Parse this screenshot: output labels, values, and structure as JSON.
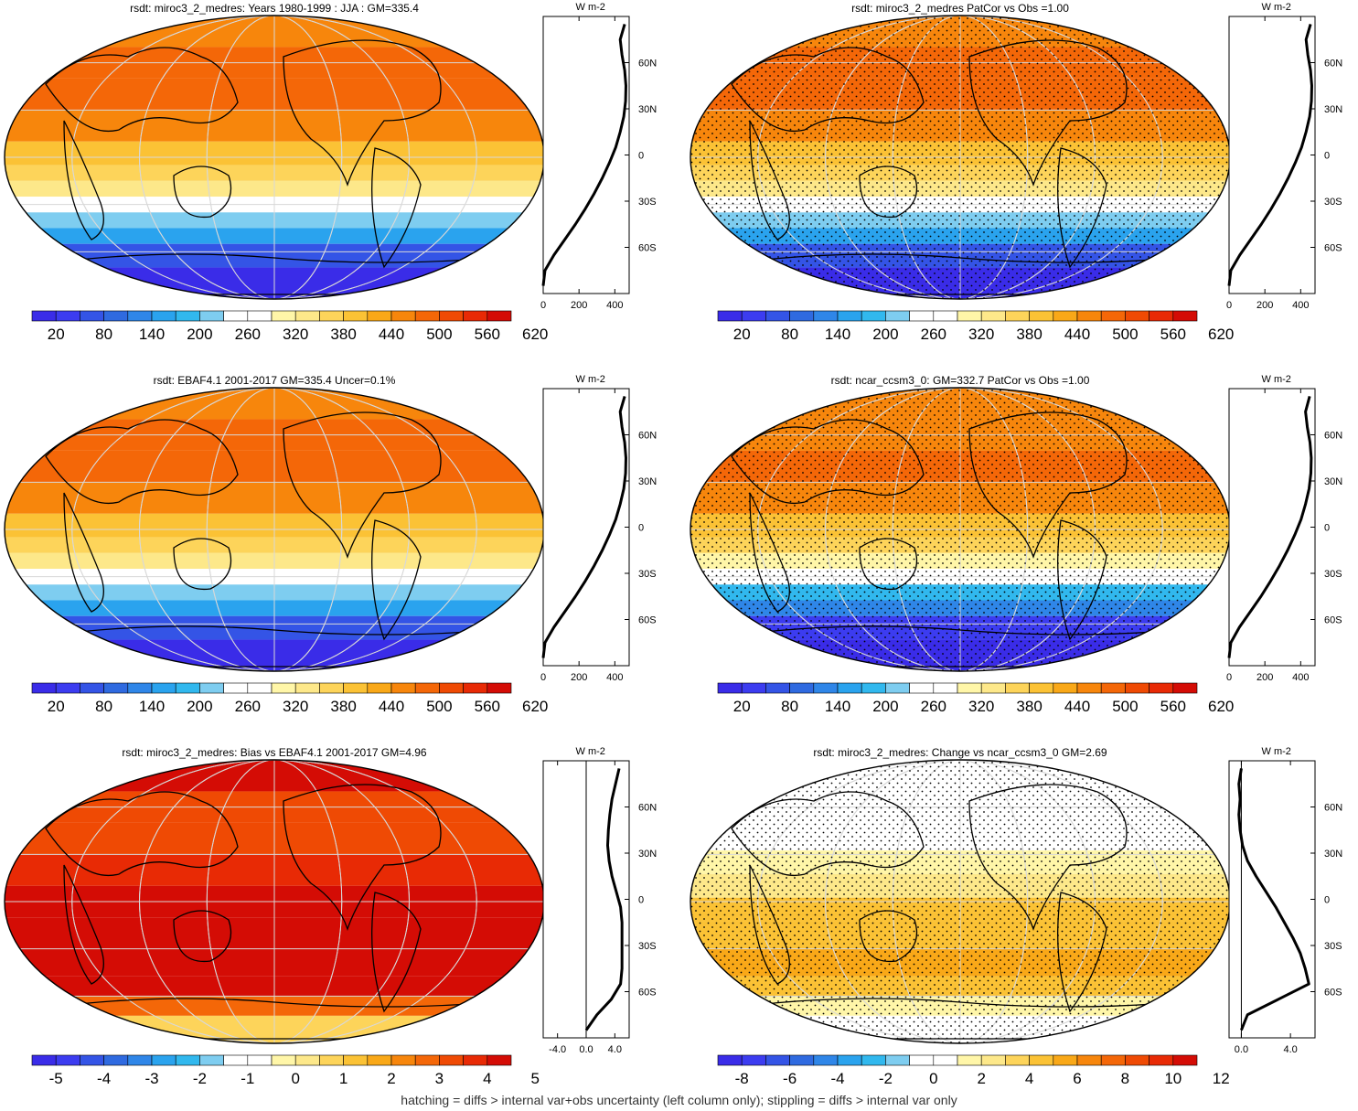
{
  "figure": {
    "footer": "hatching = diffs > internal var+obs uncertainty (left column only); stippling = diffs > internal var only",
    "units": "W m-2"
  },
  "palettes": {
    "main": [
      "#3a2ce8",
      "#3c3cf0",
      "#3454e6",
      "#2f6ae0",
      "#2f86e8",
      "#2aa3ee",
      "#31b8ee",
      "#7ecdf0",
      "#ffffff",
      "#ffffff",
      "#fff6a8",
      "#fde88a",
      "#fdd45a",
      "#fbc235",
      "#f9a818",
      "#f7860c",
      "#f46708",
      "#ef4a04",
      "#e82a05",
      "#d40c05"
    ],
    "bias": [
      "#3a2ce8",
      "#3c3cf0",
      "#3454e6",
      "#2f6ae0",
      "#2f86e8",
      "#2aa3ee",
      "#31b8ee",
      "#7ecdf0",
      "#ffffff",
      "#ffffff",
      "#fff6a8",
      "#fde88a",
      "#fdd45a",
      "#fbc235",
      "#f9a818",
      "#f7860c",
      "#f46708",
      "#ef4a04",
      "#e82a05",
      "#d40c05"
    ],
    "change": [
      "#3a2ce8",
      "#3c3cf0",
      "#3454e6",
      "#2f6ae0",
      "#2f86e8",
      "#2aa3ee",
      "#31b8ee",
      "#7ecdf0",
      "#ffffff",
      "#ffffff",
      "#fff6a8",
      "#fde88a",
      "#fdd45a",
      "#fbc235",
      "#f9a818",
      "#f7860c",
      "#f46708",
      "#ef4a04",
      "#e82a05",
      "#d40c05"
    ]
  },
  "chart_data": [
    {
      "type": "heatmap",
      "title": "rsdt: miroc3_2_medres: Years 1980-1999 : JJA : GM=335.4",
      "colorbar_labels": [
        "20",
        "80",
        "140",
        "200",
        "260",
        "320",
        "380",
        "440",
        "500",
        "560",
        "620"
      ],
      "palette": "main",
      "stipple": false,
      "map_bands_north_to_south": [
        {
          "lat": 80,
          "value": 455
        },
        {
          "lat": 60,
          "value": 470
        },
        {
          "lat": 40,
          "value": 478
        },
        {
          "lat": 20,
          "value": 455
        },
        {
          "lat": 0,
          "value": 400
        },
        {
          "lat": -10,
          "value": 370
        },
        {
          "lat": -20,
          "value": 320
        },
        {
          "lat": -30,
          "value": 250
        },
        {
          "lat": -40,
          "value": 200
        },
        {
          "lat": -50,
          "value": 140
        },
        {
          "lat": -60,
          "value": 50
        },
        {
          "lat": -80,
          "value": 5
        }
      ],
      "profile": {
        "xlabel": "W m-2",
        "xticks": [
          "0",
          "200",
          "400"
        ],
        "xlim": [
          0,
          480
        ],
        "lat": [
          -85,
          -75,
          -65,
          -55,
          -45,
          -35,
          -25,
          -15,
          -5,
          5,
          15,
          25,
          35,
          45,
          55,
          65,
          75,
          85
        ],
        "values": [
          0,
          10,
          60,
          120,
          180,
          235,
          285,
          330,
          370,
          405,
          430,
          450,
          460,
          462,
          455,
          440,
          430,
          455
        ],
        "yticks": [
          "60N",
          "30N",
          "0",
          "30S",
          "60S"
        ]
      }
    },
    {
      "type": "heatmap",
      "title": "rsdt: miroc3_2_medres PatCor vs Obs =1.00",
      "colorbar_labels": [
        "20",
        "80",
        "140",
        "200",
        "260",
        "320",
        "380",
        "440",
        "500",
        "560",
        "620"
      ],
      "palette": "main",
      "stipple": true,
      "map_bands_north_to_south": [
        {
          "lat": 80,
          "value": 455
        },
        {
          "lat": 60,
          "value": 470
        },
        {
          "lat": 40,
          "value": 478
        },
        {
          "lat": 20,
          "value": 455
        },
        {
          "lat": 0,
          "value": 400
        },
        {
          "lat": -10,
          "value": 370
        },
        {
          "lat": -20,
          "value": 320
        },
        {
          "lat": -30,
          "value": 250
        },
        {
          "lat": -40,
          "value": 200
        },
        {
          "lat": -50,
          "value": 140
        },
        {
          "lat": -60,
          "value": 50
        },
        {
          "lat": -80,
          "value": 5
        }
      ],
      "profile": {
        "xlabel": "W m-2",
        "xticks": [
          "0",
          "200",
          "400"
        ],
        "xlim": [
          0,
          480
        ],
        "lat": [
          -85,
          -75,
          -65,
          -55,
          -45,
          -35,
          -25,
          -15,
          -5,
          5,
          15,
          25,
          35,
          45,
          55,
          65,
          75,
          85
        ],
        "values": [
          0,
          10,
          60,
          120,
          180,
          235,
          285,
          330,
          370,
          405,
          430,
          450,
          460,
          462,
          455,
          440,
          430,
          455
        ],
        "yticks": [
          "60N",
          "30N",
          "0",
          "30S",
          "60S"
        ]
      }
    },
    {
      "type": "heatmap",
      "title": "rsdt: EBAF4.1 2001-2017 GM=335.4 Uncer=0.1%",
      "colorbar_labels": [
        "20",
        "80",
        "140",
        "200",
        "260",
        "320",
        "380",
        "440",
        "500",
        "560",
        "620"
      ],
      "palette": "main",
      "stipple": false,
      "map_bands_north_to_south": [
        {
          "lat": 80,
          "value": 455
        },
        {
          "lat": 60,
          "value": 470
        },
        {
          "lat": 40,
          "value": 478
        },
        {
          "lat": 20,
          "value": 455
        },
        {
          "lat": 0,
          "value": 400
        },
        {
          "lat": -10,
          "value": 370
        },
        {
          "lat": -20,
          "value": 320
        },
        {
          "lat": -30,
          "value": 250
        },
        {
          "lat": -40,
          "value": 200
        },
        {
          "lat": -50,
          "value": 140
        },
        {
          "lat": -60,
          "value": 50
        },
        {
          "lat": -80,
          "value": 5
        }
      ],
      "profile": {
        "xlabel": "W m-2",
        "xticks": [
          "0",
          "200",
          "400"
        ],
        "xlim": [
          0,
          480
        ],
        "lat": [
          -85,
          -75,
          -65,
          -55,
          -45,
          -35,
          -25,
          -15,
          -5,
          5,
          15,
          25,
          35,
          45,
          55,
          65,
          75,
          85
        ],
        "values": [
          0,
          10,
          60,
          120,
          180,
          235,
          285,
          330,
          370,
          405,
          430,
          450,
          460,
          462,
          455,
          440,
          430,
          455
        ],
        "yticks": [
          "60N",
          "30N",
          "0",
          "30S",
          "60S"
        ]
      }
    },
    {
      "type": "heatmap",
      "title": "rsdt: ncar_ccsm3_0: GM=332.7 PatCor vs Obs =1.00",
      "colorbar_labels": [
        "20",
        "80",
        "140",
        "200",
        "260",
        "320",
        "380",
        "440",
        "500",
        "560",
        "620"
      ],
      "palette": "main",
      "stipple": true,
      "map_bands_north_to_south": [
        {
          "lat": 80,
          "value": 450
        },
        {
          "lat": 60,
          "value": 465
        },
        {
          "lat": 40,
          "value": 475
        },
        {
          "lat": 20,
          "value": 452
        },
        {
          "lat": 0,
          "value": 398
        },
        {
          "lat": -10,
          "value": 368
        },
        {
          "lat": -20,
          "value": 318
        },
        {
          "lat": -30,
          "value": 248
        },
        {
          "lat": -40,
          "value": 198
        },
        {
          "lat": -50,
          "value": 138
        },
        {
          "lat": -60,
          "value": 48
        },
        {
          "lat": -80,
          "value": 5
        }
      ],
      "profile": {
        "xlabel": "W m-2",
        "xticks": [
          "0",
          "200",
          "400"
        ],
        "xlim": [
          0,
          480
        ],
        "lat": [
          -85,
          -75,
          -65,
          -55,
          -45,
          -35,
          -25,
          -15,
          -5,
          5,
          15,
          25,
          35,
          45,
          55,
          65,
          75,
          85
        ],
        "values": [
          0,
          10,
          58,
          118,
          178,
          232,
          282,
          327,
          367,
          402,
          427,
          447,
          457,
          459,
          452,
          437,
          427,
          450
        ],
        "yticks": [
          "60N",
          "30N",
          "0",
          "30S",
          "60S"
        ]
      }
    },
    {
      "type": "heatmap",
      "title": "rsdt: miroc3_2_medres: Bias vs EBAF4.1 2001-2017 GM=4.96",
      "colorbar_labels": [
        "-5",
        "-4",
        "-3",
        "-2",
        "-1",
        "0",
        "1",
        "2",
        "3",
        "4",
        "5"
      ],
      "palette": "bias",
      "stipple": false,
      "map_bands_north_to_south": [
        {
          "lat": 80,
          "value": 4.2
        },
        {
          "lat": 60,
          "value": 3.2
        },
        {
          "lat": 40,
          "value": 3.0
        },
        {
          "lat": 20,
          "value": 3.8
        },
        {
          "lat": 0,
          "value": 4.6
        },
        {
          "lat": -20,
          "value": 4.8
        },
        {
          "lat": -40,
          "value": 4.8
        },
        {
          "lat": -55,
          "value": 4.6
        },
        {
          "lat": -65,
          "value": 2.5
        },
        {
          "lat": -80,
          "value": 0.5
        }
      ],
      "profile": {
        "xlabel": "W m-2",
        "xticks": [
          "-4.0",
          "0.0",
          "4.0"
        ],
        "xlim": [
          -6,
          6
        ],
        "lat": [
          -85,
          -75,
          -65,
          -55,
          -45,
          -35,
          -25,
          -15,
          -5,
          5,
          15,
          25,
          35,
          45,
          55,
          65,
          75,
          85
        ],
        "values": [
          0.0,
          1.5,
          3.5,
          4.8,
          5.0,
          5.0,
          5.0,
          5.0,
          4.8,
          4.2,
          3.6,
          3.2,
          3.0,
          3.1,
          3.3,
          3.6,
          4.1,
          4.6
        ],
        "yticks": [
          "60N",
          "30N",
          "0",
          "30S",
          "60S"
        ]
      }
    },
    {
      "type": "heatmap",
      "title": "rsdt: miroc3_2_medres: Change vs ncar_ccsm3_0 GM=2.69",
      "colorbar_labels": [
        "-8",
        "-6",
        "-4",
        "-2",
        "0",
        "2",
        "4",
        "6",
        "8",
        "10",
        "12"
      ],
      "palette": "change",
      "stipple": true,
      "map_bands_north_to_south": [
        {
          "lat": 80,
          "value": -1.0
        },
        {
          "lat": 60,
          "value": -0.8
        },
        {
          "lat": 40,
          "value": -0.5
        },
        {
          "lat": 25,
          "value": 1.5
        },
        {
          "lat": 10,
          "value": 2.2
        },
        {
          "lat": -5,
          "value": 4.0
        },
        {
          "lat": -20,
          "value": 4.5
        },
        {
          "lat": -40,
          "value": 5.0
        },
        {
          "lat": -55,
          "value": 4.8
        },
        {
          "lat": -65,
          "value": 1.5
        },
        {
          "lat": -80,
          "value": -0.8
        }
      ],
      "profile": {
        "xlabel": "W m-2",
        "xticks": [
          "0.0",
          "4.0"
        ],
        "xlim": [
          -1,
          6
        ],
        "lat": [
          -85,
          -75,
          -65,
          -55,
          -45,
          -35,
          -25,
          -15,
          -5,
          5,
          15,
          25,
          35,
          45,
          55,
          65,
          75,
          85
        ],
        "values": [
          0.0,
          0.5,
          3.0,
          5.5,
          5.2,
          4.8,
          4.2,
          3.5,
          2.8,
          2.0,
          1.2,
          0.5,
          0.1,
          -0.1,
          -0.2,
          -0.1,
          -0.2,
          0.0
        ],
        "yticks": [
          "60N",
          "30N",
          "0",
          "30S",
          "60S"
        ]
      }
    }
  ]
}
